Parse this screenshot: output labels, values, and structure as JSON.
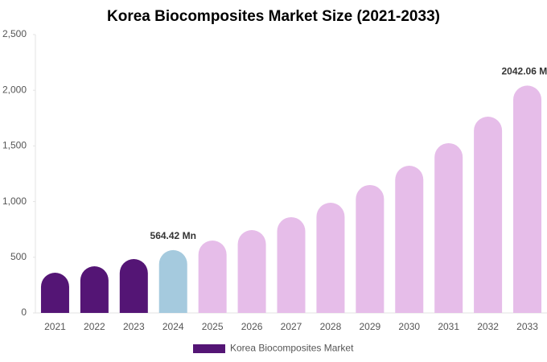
{
  "chart_data": {
    "type": "bar",
    "title": "Korea Biocomposites Market Size (2021-2033)",
    "categories": [
      "2021",
      "2022",
      "2023",
      "2024",
      "2025",
      "2026",
      "2027",
      "2028",
      "2029",
      "2030",
      "2031",
      "2032",
      "2033"
    ],
    "series": [
      {
        "name": "Korea Biocomposites Market",
        "color": "#541575",
        "values": [
          361,
          419,
          484,
          564.42,
          650,
          744,
          860,
          990,
          1149,
          1322,
          1525,
          1763,
          2042.06
        ],
        "value_labels": [
          null,
          null,
          null,
          "564.42 Mn",
          null,
          null,
          null,
          null,
          null,
          null,
          null,
          null,
          "2042.06 Mn"
        ],
        "bar_colors": [
          "#541575",
          "#541575",
          "#541575",
          "#a5cade",
          "#e6bde9",
          "#e6bde9",
          "#e6bde9",
          "#e6bde9",
          "#e6bde9",
          "#e6bde9",
          "#e6bde9",
          "#e6bde9",
          "#e6bde9"
        ]
      }
    ],
    "ylim": [
      0,
      2500
    ],
    "yticks": [
      0,
      500,
      {
        "value": 1000,
        "label": "1,000"
      },
      {
        "value": 1500,
        "label": "1,500"
      },
      {
        "value": 2000,
        "label": "2,000"
      },
      {
        "value": 2500,
        "label": "2,500"
      }
    ],
    "grid": false
  }
}
